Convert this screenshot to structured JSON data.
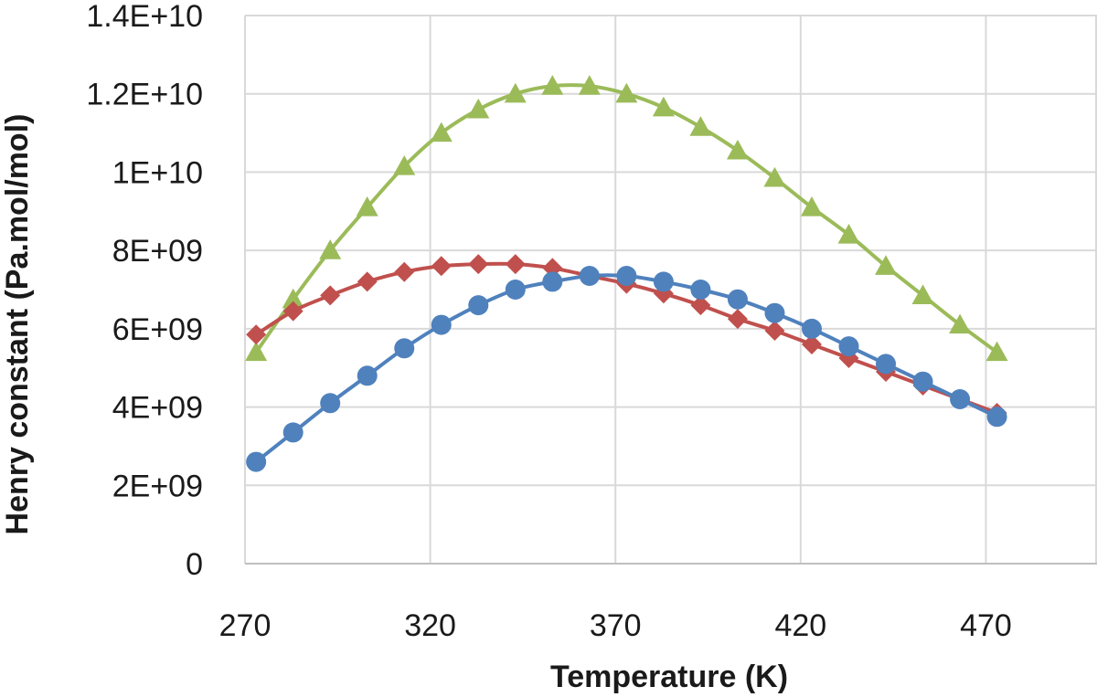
{
  "chart_data": {
    "type": "line",
    "title": "",
    "xlabel": "Temperature (K)",
    "ylabel": "Henry constant (Pa.mol/mol)",
    "xlim": [
      270,
      500
    ],
    "ylim": [
      0,
      14000000000
    ],
    "x_ticks": [
      270,
      320,
      370,
      420,
      470
    ],
    "x_tick_labels": [
      "270",
      "320",
      "370",
      "420",
      "470"
    ],
    "y_ticks": [
      0,
      2000000000,
      4000000000,
      6000000000,
      8000000000,
      10000000000,
      12000000000,
      14000000000
    ],
    "y_tick_labels": [
      "0",
      "2E+09",
      "4E+09",
      "6E+09",
      "8E+09",
      "1E+10",
      "1.2E+10",
      "1.4E+10"
    ],
    "grid": "on",
    "legend": "none",
    "series": [
      {
        "color": "#9BBB59",
        "marker": "triangle",
        "points": [
          [
            273,
            5400000000.0
          ],
          [
            283,
            6750000000.0
          ],
          [
            293,
            8000000000.0
          ],
          [
            303,
            9100000000.0
          ],
          [
            313,
            10150000000.0
          ],
          [
            323,
            11000000000.0
          ],
          [
            333,
            11600000000.0
          ],
          [
            343,
            12000000000.0
          ],
          [
            353,
            12200000000.0
          ],
          [
            363,
            12200000000.0
          ],
          [
            373,
            12000000000.0
          ],
          [
            383,
            11650000000.0
          ],
          [
            393,
            11150000000.0
          ],
          [
            403,
            10550000000.0
          ],
          [
            413,
            9850000000.0
          ],
          [
            423,
            9100000000.0
          ],
          [
            433,
            8400000000.0
          ],
          [
            443,
            7600000000.0
          ],
          [
            453,
            6850000000.0
          ],
          [
            463,
            6100000000.0
          ],
          [
            473,
            5400000000.0
          ]
        ]
      },
      {
        "color": "#C0504D",
        "marker": "diamond",
        "points": [
          [
            273,
            5850000000.0
          ],
          [
            283,
            6450000000.0
          ],
          [
            293,
            6850000000.0
          ],
          [
            303,
            7200000000.0
          ],
          [
            313,
            7450000000.0
          ],
          [
            323,
            7600000000.0
          ],
          [
            333,
            7650000000.0
          ],
          [
            343,
            7650000000.0
          ],
          [
            353,
            7550000000.0
          ],
          [
            363,
            7350000000.0
          ],
          [
            373,
            7150000000.0
          ],
          [
            383,
            6900000000.0
          ],
          [
            393,
            6600000000.0
          ],
          [
            403,
            6250000000.0
          ],
          [
            413,
            5950000000.0
          ],
          [
            423,
            5600000000.0
          ],
          [
            433,
            5250000000.0
          ],
          [
            443,
            4900000000.0
          ],
          [
            453,
            4550000000.0
          ],
          [
            463,
            4200000000.0
          ],
          [
            473,
            3850000000.0
          ]
        ]
      },
      {
        "color": "#4F81BD",
        "marker": "circle",
        "points": [
          [
            273,
            2600000000.0
          ],
          [
            283,
            3350000000.0
          ],
          [
            293,
            4100000000.0
          ],
          [
            303,
            4800000000.0
          ],
          [
            313,
            5500000000.0
          ],
          [
            323,
            6100000000.0
          ],
          [
            333,
            6600000000.0
          ],
          [
            343,
            7000000000.0
          ],
          [
            353,
            7200000000.0
          ],
          [
            363,
            7350000000.0
          ],
          [
            373,
            7350000000.0
          ],
          [
            383,
            7200000000.0
          ],
          [
            393,
            7000000000.0
          ],
          [
            403,
            6750000000.0
          ],
          [
            413,
            6400000000.0
          ],
          [
            423,
            6000000000.0
          ],
          [
            433,
            5550000000.0
          ],
          [
            443,
            5100000000.0
          ],
          [
            453,
            4650000000.0
          ],
          [
            463,
            4200000000.0
          ],
          [
            473,
            3750000000.0
          ]
        ]
      }
    ]
  }
}
